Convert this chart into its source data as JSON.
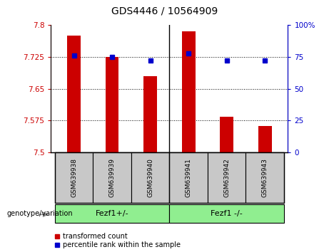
{
  "title": "GDS4446 / 10564909",
  "samples": [
    "GSM639938",
    "GSM639939",
    "GSM639940",
    "GSM639941",
    "GSM639942",
    "GSM639943"
  ],
  "bar_values": [
    7.775,
    7.725,
    7.68,
    7.785,
    7.585,
    7.562
  ],
  "percentile_values": [
    76,
    75,
    72,
    78,
    72,
    72
  ],
  "ylim_left": [
    7.5,
    7.8
  ],
  "ylim_right": [
    0,
    100
  ],
  "yticks_left": [
    7.5,
    7.575,
    7.65,
    7.725,
    7.8
  ],
  "yticks_right": [
    0,
    25,
    50,
    75,
    100
  ],
  "bar_color": "#cc0000",
  "dot_color": "#0000cc",
  "bar_bottom": 7.5,
  "legend_red_label": "transformed count",
  "legend_blue_label": "percentile rank within the sample",
  "genotype_label": "genotype/variation",
  "group1_label": "Fezf1+/-",
  "group2_label": "Fezf1 -/-",
  "green_color": "#90ee90",
  "gray_color": "#c8c8c8",
  "tick_color_left": "#cc0000",
  "tick_color_right": "#0000cc",
  "figsize": [
    4.61,
    3.54
  ],
  "dpi": 100
}
